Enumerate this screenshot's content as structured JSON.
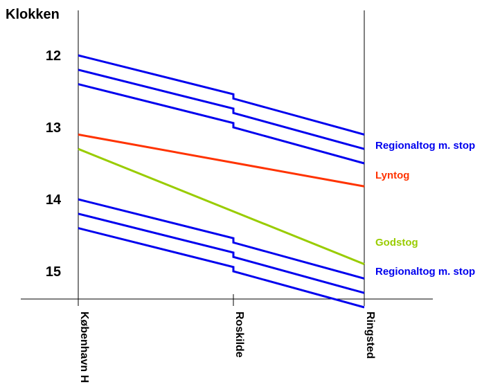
{
  "chart_data": {
    "type": "line",
    "title": "",
    "ylabel": "Klokken",
    "xlabel": "",
    "y_ticks": [
      "12",
      "13",
      "14",
      "15"
    ],
    "stations": [
      "København H",
      "Roskilde",
      "Ringsted"
    ],
    "y_unit": "hours",
    "ylim": [
      11.6,
      15.6
    ],
    "groups": [
      {
        "label": "Regionaltog m. stop",
        "color": "#0000ee",
        "trains": [
          {
            "times": [
              12.0,
              12.54,
              12.6,
              13.1
            ]
          },
          {
            "times": [
              12.2,
              12.74,
              12.8,
              13.3
            ]
          },
          {
            "times": [
              12.4,
              12.94,
              13.0,
              13.5
            ]
          }
        ]
      },
      {
        "label": "Lyntog",
        "color": "#ff3300",
        "trains": [
          {
            "times": [
              13.1,
              13.82
            ]
          }
        ]
      },
      {
        "label": "Godstog",
        "color": "#99cc00",
        "trains": [
          {
            "times": [
              13.3,
              14.9
            ]
          }
        ]
      },
      {
        "label": "Regionaltog m. stop",
        "color": "#0000ee",
        "trains": [
          {
            "times": [
              14.0,
              14.54,
              14.6,
              15.1
            ]
          },
          {
            "times": [
              14.2,
              14.74,
              14.8,
              15.3
            ]
          },
          {
            "times": [
              14.4,
              14.94,
              15.0,
              15.5
            ]
          }
        ]
      }
    ]
  }
}
